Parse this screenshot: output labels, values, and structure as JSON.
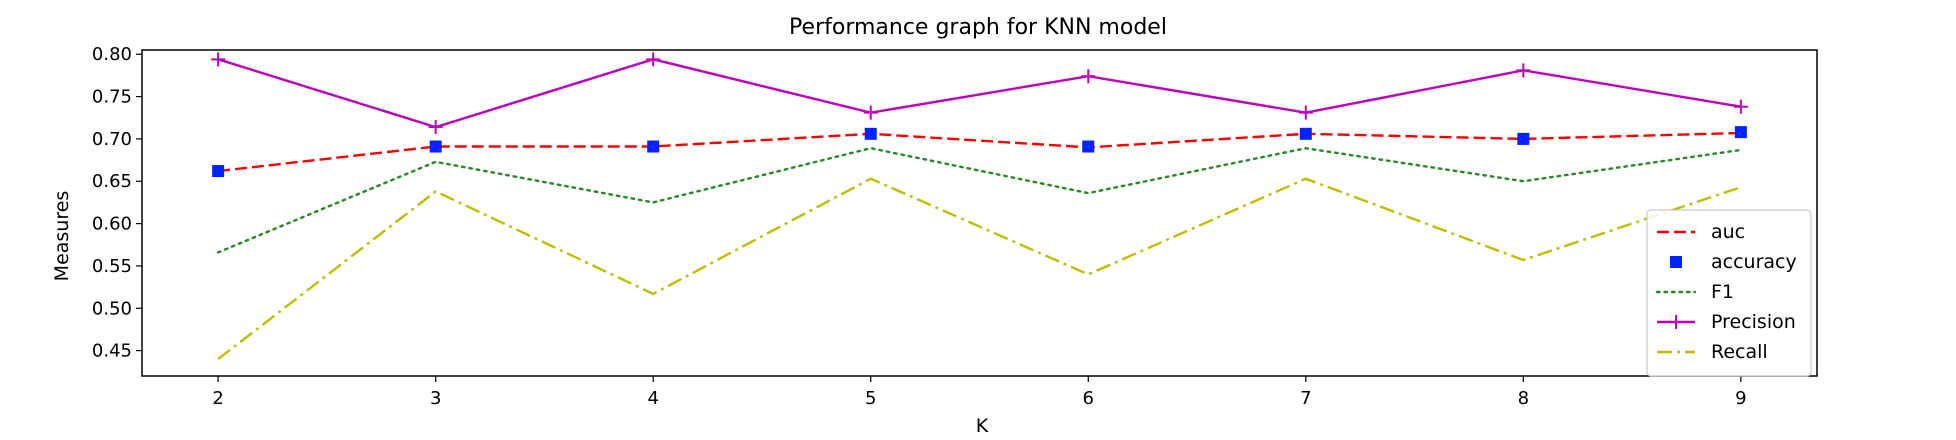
{
  "chart_data": {
    "type": "line",
    "title": "Performance graph for KNN model",
    "xlabel": "K",
    "ylabel": "Measures",
    "x": [
      2,
      3,
      4,
      5,
      6,
      7,
      8,
      9
    ],
    "xlim": [
      1.65,
      9.35
    ],
    "ylim": [
      0.42,
      0.805
    ],
    "x_ticks": [
      "2",
      "3",
      "4",
      "5",
      "6",
      "7",
      "8",
      "9"
    ],
    "y_ticks": [
      0.45,
      0.5,
      0.55,
      0.6,
      0.65,
      0.7,
      0.75,
      0.8
    ],
    "y_tick_labels": [
      "0.45",
      "0.50",
      "0.55",
      "0.60",
      "0.65",
      "0.70",
      "0.75",
      "0.80"
    ],
    "grid": false,
    "legend_position": "lower-right",
    "series": [
      {
        "name": "auc",
        "values": [
          0.662,
          0.691,
          0.691,
          0.706,
          0.69,
          0.706,
          0.7,
          0.707
        ],
        "color": "#ff0000",
        "style": "dashed",
        "marker": "none"
      },
      {
        "name": "accuracy",
        "values": [
          0.662,
          0.691,
          0.691,
          0.706,
          0.691,
          0.706,
          0.7,
          0.708
        ],
        "color": "#0022ff",
        "style": "none",
        "marker": "square"
      },
      {
        "name": "F1",
        "values": [
          0.566,
          0.673,
          0.625,
          0.689,
          0.636,
          0.689,
          0.65,
          0.687
        ],
        "color": "#228b22",
        "style": "dotted",
        "marker": "none"
      },
      {
        "name": "Precision",
        "values": [
          0.794,
          0.714,
          0.794,
          0.731,
          0.774,
          0.731,
          0.781,
          0.738
        ],
        "color": "#bf00bf",
        "style": "solid",
        "marker": "plus"
      },
      {
        "name": "Recall",
        "values": [
          0.44,
          0.638,
          0.517,
          0.653,
          0.54,
          0.653,
          0.557,
          0.643
        ],
        "color": "#bfbf00",
        "style": "dashdot",
        "marker": "none"
      }
    ]
  }
}
